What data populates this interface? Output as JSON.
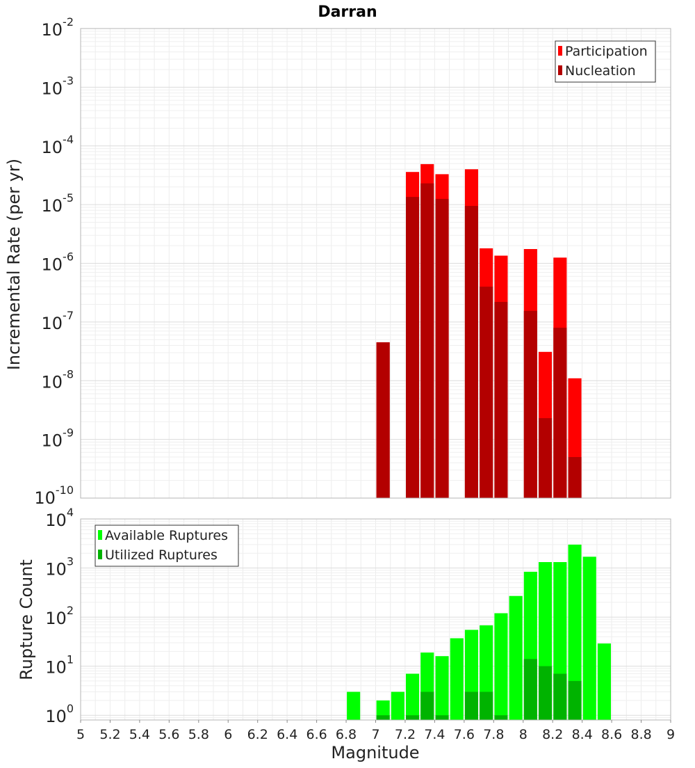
{
  "chart_data": [
    {
      "type": "bar",
      "title": "Darran",
      "xlabel": "",
      "ylabel": "Incremental Rate (per yr)",
      "yscale": "log",
      "ylim": [
        1e-10,
        0.01
      ],
      "xlim": [
        5,
        9
      ],
      "y_tick_exponents": [
        "-2",
        "-3",
        "-4",
        "-5",
        "-6",
        "-7",
        "-8",
        "-9",
        "-10"
      ],
      "y_tick_base": "10",
      "grid": true,
      "legend_position": "top-right",
      "bar_width": 0.09,
      "series": [
        {
          "name": "Participation",
          "color": "#ff0000",
          "points": [
            {
              "x": 7.05,
              "y": 4.5e-08
            },
            {
              "x": 7.25,
              "y": 3.6e-05
            },
            {
              "x": 7.35,
              "y": 4.9e-05
            },
            {
              "x": 7.45,
              "y": 3.3e-05
            },
            {
              "x": 7.65,
              "y": 4e-05
            },
            {
              "x": 7.75,
              "y": 1.8e-06
            },
            {
              "x": 7.85,
              "y": 1.35e-06
            },
            {
              "x": 8.05,
              "y": 1.75e-06
            },
            {
              "x": 8.15,
              "y": 3.1e-08
            },
            {
              "x": 8.25,
              "y": 1.25e-06
            },
            {
              "x": 8.35,
              "y": 1.1e-08
            }
          ]
        },
        {
          "name": "Nucleation",
          "color": "#b30000",
          "points": [
            {
              "x": 7.05,
              "y": 4.5e-08
            },
            {
              "x": 7.25,
              "y": 1.35e-05
            },
            {
              "x": 7.35,
              "y": 2.3e-05
            },
            {
              "x": 7.45,
              "y": 1.25e-05
            },
            {
              "x": 7.65,
              "y": 9.5e-06
            },
            {
              "x": 7.75,
              "y": 4e-07
            },
            {
              "x": 7.85,
              "y": 2.2e-07
            },
            {
              "x": 8.05,
              "y": 1.55e-07
            },
            {
              "x": 8.15,
              "y": 2.3e-09
            },
            {
              "x": 8.25,
              "y": 8e-08
            },
            {
              "x": 8.35,
              "y": 5e-10
            }
          ]
        }
      ]
    },
    {
      "type": "bar",
      "title": "",
      "xlabel": "Magnitude",
      "ylabel": "Rupture Count",
      "yscale": "log",
      "ylim": [
        0.8,
        10000
      ],
      "xlim": [
        5,
        9
      ],
      "x_ticks": [
        "5",
        "5.2",
        "5.4",
        "5.6",
        "5.8",
        "6",
        "6.2",
        "6.4",
        "6.6",
        "6.8",
        "7",
        "7.2",
        "7.4",
        "7.6",
        "7.8",
        "8",
        "8.2",
        "8.4",
        "8.6",
        "8.8",
        "9"
      ],
      "y_tick_exponents": [
        "4",
        "3",
        "2",
        "1",
        "0"
      ],
      "y_tick_base": "10",
      "grid": true,
      "legend_position": "top-left",
      "bar_width": 0.09,
      "series": [
        {
          "name": "Available Ruptures",
          "color": "#00ff00",
          "points": [
            {
              "x": 6.85,
              "y": 3
            },
            {
              "x": 7.05,
              "y": 2
            },
            {
              "x": 7.15,
              "y": 3
            },
            {
              "x": 7.25,
              "y": 7
            },
            {
              "x": 7.35,
              "y": 19
            },
            {
              "x": 7.45,
              "y": 16
            },
            {
              "x": 7.55,
              "y": 37
            },
            {
              "x": 7.65,
              "y": 55
            },
            {
              "x": 7.75,
              "y": 68
            },
            {
              "x": 7.85,
              "y": 120
            },
            {
              "x": 7.95,
              "y": 270
            },
            {
              "x": 8.05,
              "y": 840
            },
            {
              "x": 8.15,
              "y": 1320
            },
            {
              "x": 8.25,
              "y": 1320
            },
            {
              "x": 8.35,
              "y": 3000
            },
            {
              "x": 8.45,
              "y": 1700
            },
            {
              "x": 8.55,
              "y": 29
            }
          ]
        },
        {
          "name": "Utilized Ruptures",
          "color": "#00b300",
          "points": [
            {
              "x": 7.05,
              "y": 1
            },
            {
              "x": 7.25,
              "y": 1
            },
            {
              "x": 7.35,
              "y": 3
            },
            {
              "x": 7.45,
              "y": 1
            },
            {
              "x": 7.65,
              "y": 3
            },
            {
              "x": 7.75,
              "y": 3
            },
            {
              "x": 7.85,
              "y": 1
            },
            {
              "x": 8.05,
              "y": 14
            },
            {
              "x": 8.15,
              "y": 10
            },
            {
              "x": 8.25,
              "y": 7
            },
            {
              "x": 8.35,
              "y": 5
            }
          ]
        }
      ]
    }
  ]
}
